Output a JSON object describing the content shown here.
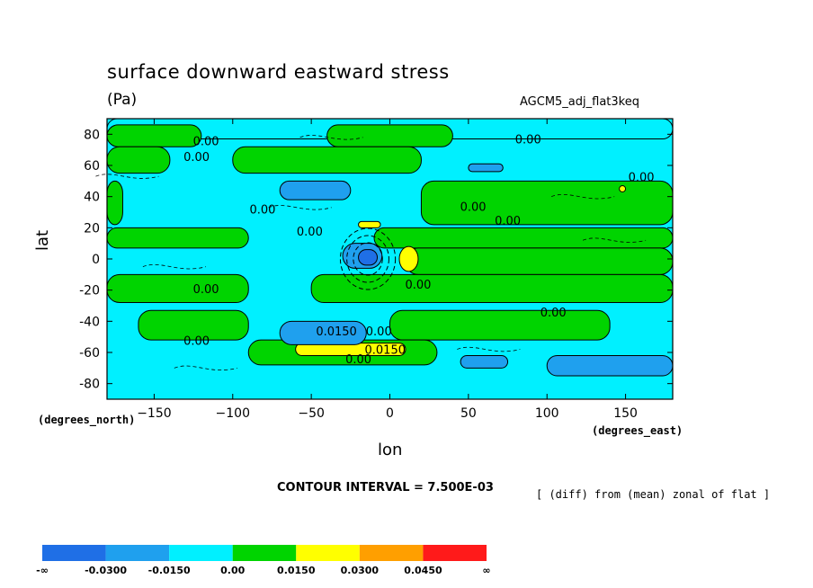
{
  "chart_data": {
    "type": "heatmap",
    "title": "surface downward eastward stress",
    "units": "(Pa)",
    "dataset": "AGCM5_adj_flat3keq",
    "xlabel": "lon",
    "ylabel": "lat",
    "x_units_note": "(degrees_east)",
    "y_units_note": "(degrees_north)",
    "xlim": [
      -180,
      180
    ],
    "ylim": [
      -90,
      90
    ],
    "x_ticks": [
      -150,
      -100,
      -50,
      0,
      50,
      100,
      150
    ],
    "y_ticks": [
      80,
      60,
      40,
      20,
      0,
      -20,
      -40,
      -60,
      -80
    ],
    "contour_interval_text": "CONTOUR INTERVAL = 7.500E-03",
    "subtitle_note": "[ (diff) from (mean) zonal of flat ]",
    "colorbar": {
      "levels": [
        "-∞",
        "-0.0300",
        "-0.0150",
        "0.00",
        "0.0150",
        "0.0300",
        "0.0450",
        "∞"
      ],
      "colors": [
        "#1f6fe6",
        "#1fa0ee",
        "#00f0ff",
        "#00d400",
        "#ffff00",
        "#ff9f00",
        "#ff1a1a"
      ]
    },
    "palette": {
      "blue_dark": "#1f6fe6",
      "blue_mid": "#1fa0ee",
      "cyan": "#00f0ff",
      "green": "#00d400",
      "yellow": "#ffff00",
      "orange": "#ff9f00",
      "red": "#ff1a1a"
    },
    "bands": [
      {
        "lat": [
          77,
          90
        ],
        "lons": [
          [
            -180,
            180
          ]
        ],
        "level": "cyan"
      },
      {
        "lat": [
          72,
          86
        ],
        "lons": [
          [
            -180,
            -120
          ],
          [
            -40,
            40
          ]
        ],
        "level": "green"
      },
      {
        "lat": [
          55,
          72
        ],
        "lons": [
          [
            -180,
            -140
          ],
          [
            -100,
            20
          ]
        ],
        "level": "green"
      },
      {
        "lat": [
          22,
          50
        ],
        "lons": [
          [
            -180,
            -170
          ],
          [
            20,
            180
          ]
        ],
        "level": "green"
      },
      {
        "lat": [
          7,
          20
        ],
        "lons": [
          [
            -180,
            -90
          ],
          [
            -10,
            180
          ]
        ],
        "level": "green"
      },
      {
        "lat": [
          -10,
          7
        ],
        "lons": [
          [
            10,
            180
          ]
        ],
        "level": "green"
      },
      {
        "lat": [
          -28,
          -10
        ],
        "lons": [
          [
            -180,
            -90
          ],
          [
            -50,
            180
          ]
        ],
        "level": "green"
      },
      {
        "lat": [
          -52,
          -33
        ],
        "lons": [
          [
            -160,
            -90
          ],
          [
            0,
            140
          ]
        ],
        "level": "green"
      },
      {
        "lat": [
          -68,
          -52
        ],
        "lons": [
          [
            -90,
            30
          ]
        ],
        "level": "green"
      },
      {
        "lat": [
          -62,
          -54
        ],
        "lons": [
          [
            -60,
            10
          ]
        ],
        "level": "yellow"
      },
      {
        "lat": [
          -8,
          8
        ],
        "lons": [
          [
            6,
            18
          ]
        ],
        "level": "yellow"
      },
      {
        "lat": [
          20,
          24
        ],
        "lons": [
          [
            -20,
            -6
          ]
        ],
        "level": "yellow"
      },
      {
        "lat": [
          43,
          47
        ],
        "lons": [
          [
            146,
            150
          ]
        ],
        "level": "yellow"
      },
      {
        "lat": [
          38,
          50
        ],
        "lons": [
          [
            -70,
            -25
          ]
        ],
        "level": "blue_mid"
      },
      {
        "lat": [
          56,
          61
        ],
        "lons": [
          [
            50,
            72
          ]
        ],
        "level": "blue_mid"
      },
      {
        "lat": [
          -6,
          10
        ],
        "lons": [
          [
            -30,
            -5
          ]
        ],
        "level": "blue_mid"
      },
      {
        "lat": [
          -4,
          6
        ],
        "lons": [
          [
            -20,
            -8
          ]
        ],
        "level": "blue_dark"
      },
      {
        "lat": [
          -55,
          -40
        ],
        "lons": [
          [
            -70,
            -15
          ]
        ],
        "level": "blue_mid"
      },
      {
        "lat": [
          -75,
          -62
        ],
        "lons": [
          [
            100,
            180
          ]
        ],
        "level": "blue_mid"
      },
      {
        "lat": [
          -70,
          -62
        ],
        "lons": [
          [
            45,
            75
          ]
        ],
        "level": "blue_mid"
      }
    ],
    "contour_labels": [
      {
        "text": "0.00",
        "lon": -117,
        "lat": 73
      },
      {
        "text": "0.00",
        "lon": -123,
        "lat": 63
      },
      {
        "text": "0.00",
        "lon": 88,
        "lat": 74
      },
      {
        "text": "0.00",
        "lon": 160,
        "lat": 50
      },
      {
        "text": "0.00",
        "lon": 53,
        "lat": 31
      },
      {
        "text": "0.00",
        "lon": 75,
        "lat": 22
      },
      {
        "text": "0.00",
        "lon": -81,
        "lat": 29
      },
      {
        "text": "0.00",
        "lon": -51,
        "lat": 15
      },
      {
        "text": "0.00",
        "lon": -117,
        "lat": -22
      },
      {
        "text": "0.00",
        "lon": 18,
        "lat": -19
      },
      {
        "text": "0.00",
        "lon": 104,
        "lat": -37
      },
      {
        "text": "0.00",
        "lon": -123,
        "lat": -55
      },
      {
        "text": "0.0150",
        "lon": -34,
        "lat": -49
      },
      {
        "text": "0.00",
        "lon": -7,
        "lat": -49
      },
      {
        "text": "0.0150",
        "lon": -3,
        "lat": -61
      },
      {
        "text": "0.00",
        "lon": -20,
        "lat": -67
      }
    ]
  }
}
